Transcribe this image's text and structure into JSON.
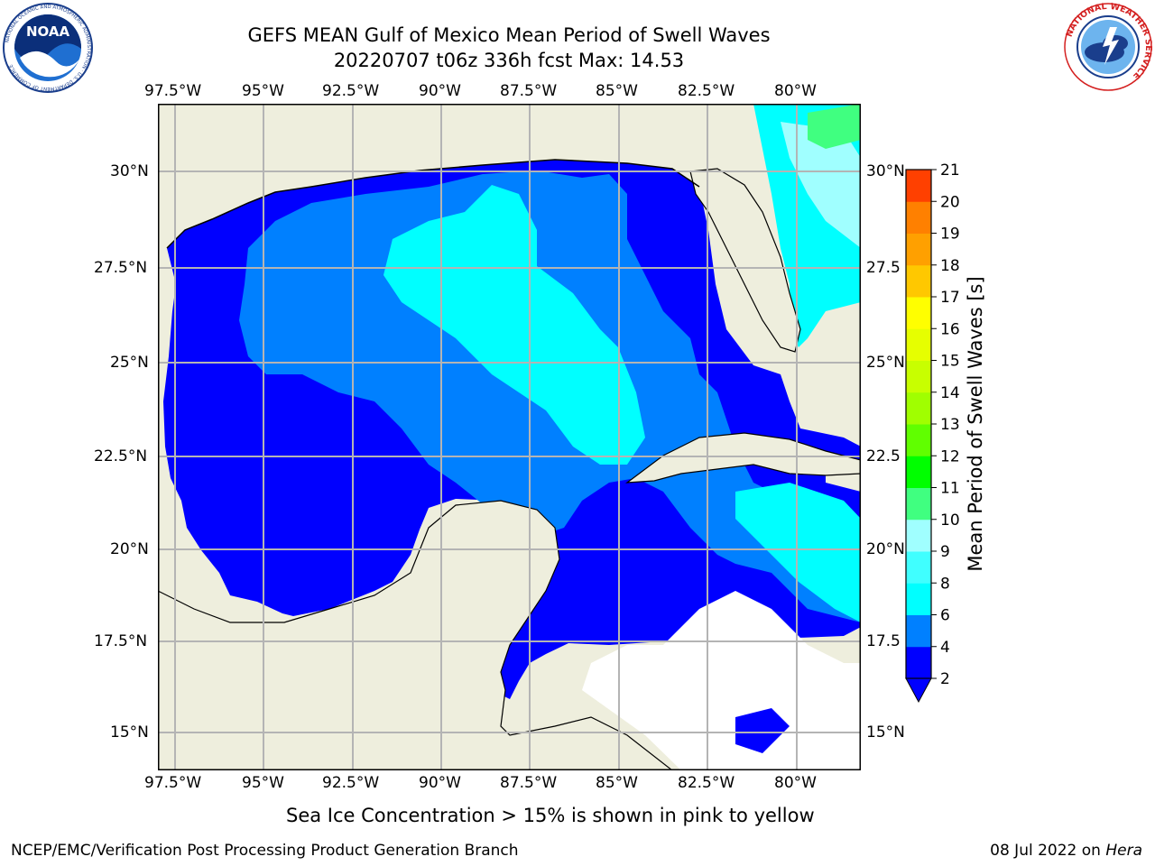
{
  "header": {
    "title_line1": "GEFS MEAN Gulf of Mexico Mean Period of Swell Waves",
    "title_line2": "20220707 t06z 336h fcst   Max: 14.53"
  },
  "logos": {
    "left": {
      "name": "noaa-logo",
      "text": "NOAA",
      "ring_text": "NATIONAL OCEANIC AND ATMOSPHERIC ADMINISTRATION · U.S. DEPARTMENT OF COMMERCE"
    },
    "right": {
      "name": "nws-logo",
      "ring_text": "NATIONAL WEATHER SERVICE"
    }
  },
  "map": {
    "lon_ticks_top": [
      "97.5°W",
      "95°W",
      "92.5°W",
      "90°W",
      "87.5°W",
      "85°W",
      "82.5°W",
      "80°W"
    ],
    "lon_ticks_bottom": [
      "97.5°W",
      "95°W",
      "92.5°W",
      "90°W",
      "87.5°W",
      "85°W",
      "82.5°W",
      "80°W"
    ],
    "lat_ticks_left": [
      "30°N",
      "27.5°N",
      "25°N",
      "22.5°N",
      "20°N",
      "17.5°N",
      "15°N"
    ],
    "lat_ticks_right": [
      "30°N",
      "27.5",
      "25°N",
      "22.5",
      "20°N",
      "17.5",
      "15°N"
    ],
    "colors": {
      "land": "#eeeedd",
      "grid": "#b4b4b4",
      "coast": "#000000"
    }
  },
  "colorbar": {
    "label": "Mean Period of Swell Waves [s]",
    "ticks": [
      "2",
      "4",
      "6",
      "8",
      "9",
      "10",
      "11",
      "12",
      "13",
      "14",
      "15",
      "16",
      "17",
      "18",
      "19",
      "20",
      "21"
    ],
    "colors": [
      "#0000ff",
      "#0080ff",
      "#00ffff",
      "#40ffff",
      "#a0ffff",
      "#40ff80",
      "#00ff00",
      "#60ff00",
      "#a0ff00",
      "#c8ff00",
      "#e6ff00",
      "#ffff00",
      "#ffc800",
      "#ffa000",
      "#ff8000",
      "#ff4000",
      "#ff0000"
    ]
  },
  "notes": {
    "sea_ice": "Sea Ice Concentration > 15% is shown in pink to yellow"
  },
  "footer": {
    "left": "NCEP/EMC/Verification Post Processing Product Generation Branch",
    "right_date": "08 Jul 2022 on ",
    "right_host": "Hera"
  }
}
